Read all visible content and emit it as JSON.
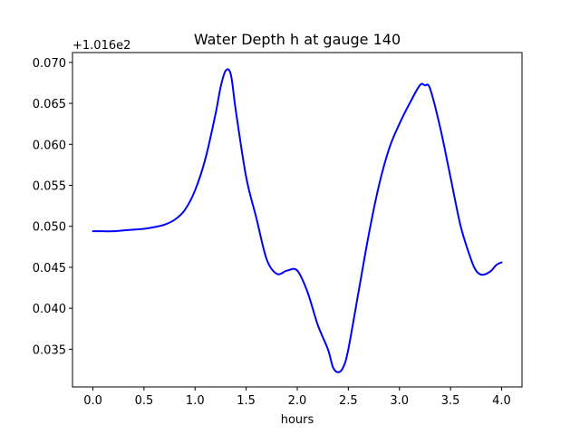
{
  "chart_data": {
    "type": "line",
    "title": "Water Depth h at gauge 140",
    "xlabel": "hours",
    "ylabel": "",
    "y_offset_label": "+1.016e2",
    "xlim": [
      -0.2,
      4.2
    ],
    "ylim": [
      0.0304,
      0.0712
    ],
    "x_ticks": [
      "0.0",
      "0.5",
      "1.0",
      "1.5",
      "2.0",
      "2.5",
      "3.0",
      "3.5",
      "4.0"
    ],
    "y_ticks": [
      "0.035",
      "0.040",
      "0.045",
      "0.050",
      "0.055",
      "0.060",
      "0.065",
      "0.070"
    ],
    "grid": false,
    "series_color": "#0000ff",
    "series": [
      {
        "x": [
          0.0,
          0.1,
          0.2,
          0.3,
          0.4,
          0.5,
          0.6,
          0.7,
          0.8,
          0.9,
          1.0,
          1.1,
          1.2,
          1.25,
          1.3,
          1.35,
          1.4,
          1.5,
          1.6,
          1.7,
          1.8,
          1.9,
          2.0,
          2.1,
          2.2,
          2.3,
          2.35,
          2.4,
          2.45,
          2.5,
          2.6,
          2.7,
          2.8,
          2.9,
          3.0,
          3.1,
          3.2,
          3.25,
          3.3,
          3.4,
          3.5,
          3.6,
          3.7,
          3.75,
          3.8,
          3.85,
          3.9,
          3.95,
          4.0
        ],
        "values": [
          0.0494,
          0.0494,
          0.0494,
          0.0495,
          0.0496,
          0.0497,
          0.0499,
          0.0502,
          0.0508,
          0.052,
          0.0544,
          0.0582,
          0.0637,
          0.067,
          0.069,
          0.0685,
          0.064,
          0.056,
          0.051,
          0.046,
          0.0442,
          0.0446,
          0.0446,
          0.042,
          0.038,
          0.035,
          0.0328,
          0.0322,
          0.0328,
          0.035,
          0.042,
          0.049,
          0.055,
          0.0595,
          0.0625,
          0.065,
          0.0672,
          0.0672,
          0.0668,
          0.062,
          0.056,
          0.05,
          0.046,
          0.0446,
          0.0441,
          0.0442,
          0.0446,
          0.0453,
          0.0456
        ]
      }
    ]
  }
}
